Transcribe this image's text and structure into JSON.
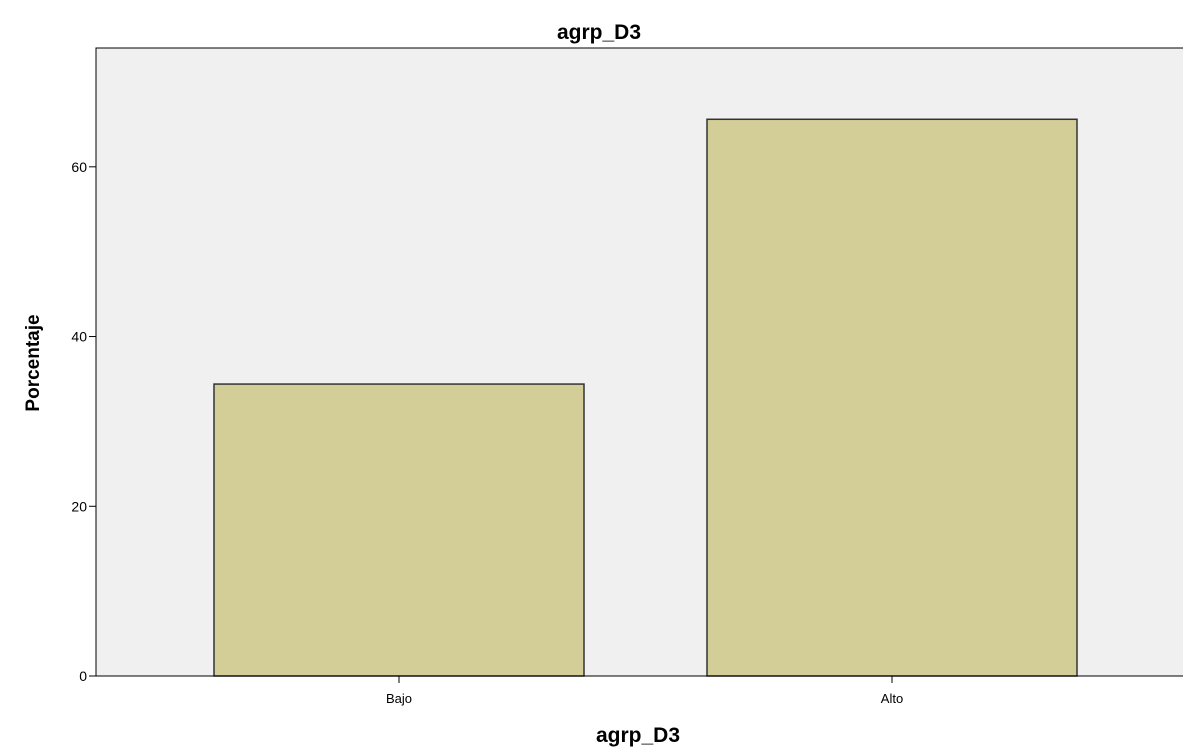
{
  "chart_data": {
    "type": "bar",
    "title": "agrp_D3",
    "xlabel": "agrp_D3",
    "ylabel": "Porcentaje",
    "categories": [
      "Bajo",
      "Alto"
    ],
    "values": [
      34.4,
      65.6
    ],
    "ylim": [
      0,
      74
    ],
    "yticks": [
      0,
      20,
      40,
      60
    ],
    "ytick_labels": [
      "0",
      "20",
      "40",
      "60"
    ],
    "grid": false,
    "legend": "none"
  },
  "colors": {
    "plot_background": "#f0f0f0",
    "bar_fill": "#d3ce97",
    "bar_stroke": "#333333",
    "axis": "#000000"
  }
}
